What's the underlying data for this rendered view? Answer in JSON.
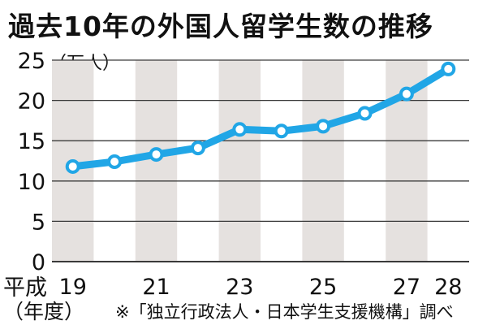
{
  "chart_data": {
    "type": "line",
    "title": "過去10年の外国人留学生数の推移",
    "ylabel": "（万人）",
    "xlabel_prefix": "平成",
    "xlabel_unit": "（年度）",
    "note": "※「独立行政法人・日本学生支援機構」調べ",
    "x": [
      19,
      20,
      21,
      22,
      23,
      24,
      25,
      26,
      27,
      28
    ],
    "x_tick_labels": [
      "19",
      "",
      "21",
      "",
      "23",
      "",
      "25",
      "",
      "27",
      "28"
    ],
    "series": [
      {
        "values": [
          11.8,
          12.4,
          13.3,
          14.1,
          16.4,
          16.2,
          16.8,
          18.4,
          20.8,
          23.9
        ]
      }
    ],
    "ylim": [
      0,
      25
    ],
    "yticks": [
      0,
      5,
      10,
      15,
      20,
      25
    ],
    "grid": true,
    "line_color": "#21a6e6",
    "band_color": "#e5e1df",
    "axis_color": "#3a3a3a"
  }
}
